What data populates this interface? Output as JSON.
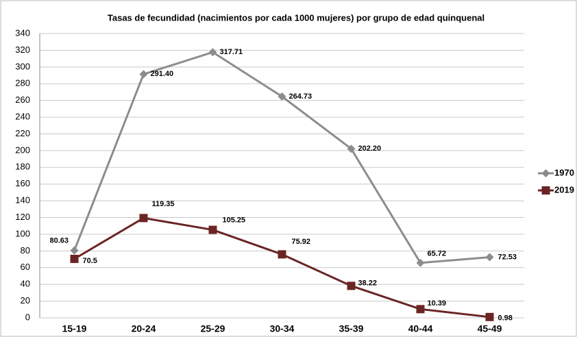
{
  "chart_data": {
    "type": "line",
    "title": "Tasas de fecundidad (nacimientos por cada 1000 mujeres) por grupo de edad quinquenal",
    "categories": [
      "15-19",
      "20-24",
      "25-29",
      "30-34",
      "35-39",
      "40-44",
      "45-49"
    ],
    "series": [
      {
        "name": "1970",
        "color": "#8c8c8c",
        "marker": "diamond",
        "values": [
          80.63,
          291.4,
          317.71,
          264.73,
          202.2,
          65.72,
          72.53
        ],
        "value_labels": [
          "80.63",
          "291.40",
          "317.71",
          "264.73",
          "202.20",
          "65.72",
          "72.53"
        ]
      },
      {
        "name": "2019",
        "color": "#6b2424",
        "marker": "square",
        "values": [
          70.5,
          119.35,
          105.25,
          75.92,
          38.22,
          10.39,
          0.98
        ],
        "value_labels": [
          "70.5",
          "119.35",
          "105.25",
          "75.92",
          "38.22",
          "10.39",
          "0.98"
        ]
      }
    ],
    "ylim": [
      0,
      340
    ],
    "yticks": [
      0,
      20,
      40,
      60,
      80,
      100,
      120,
      140,
      160,
      180,
      200,
      220,
      240,
      260,
      280,
      300,
      320,
      340
    ],
    "grid": true,
    "legend": "right"
  }
}
